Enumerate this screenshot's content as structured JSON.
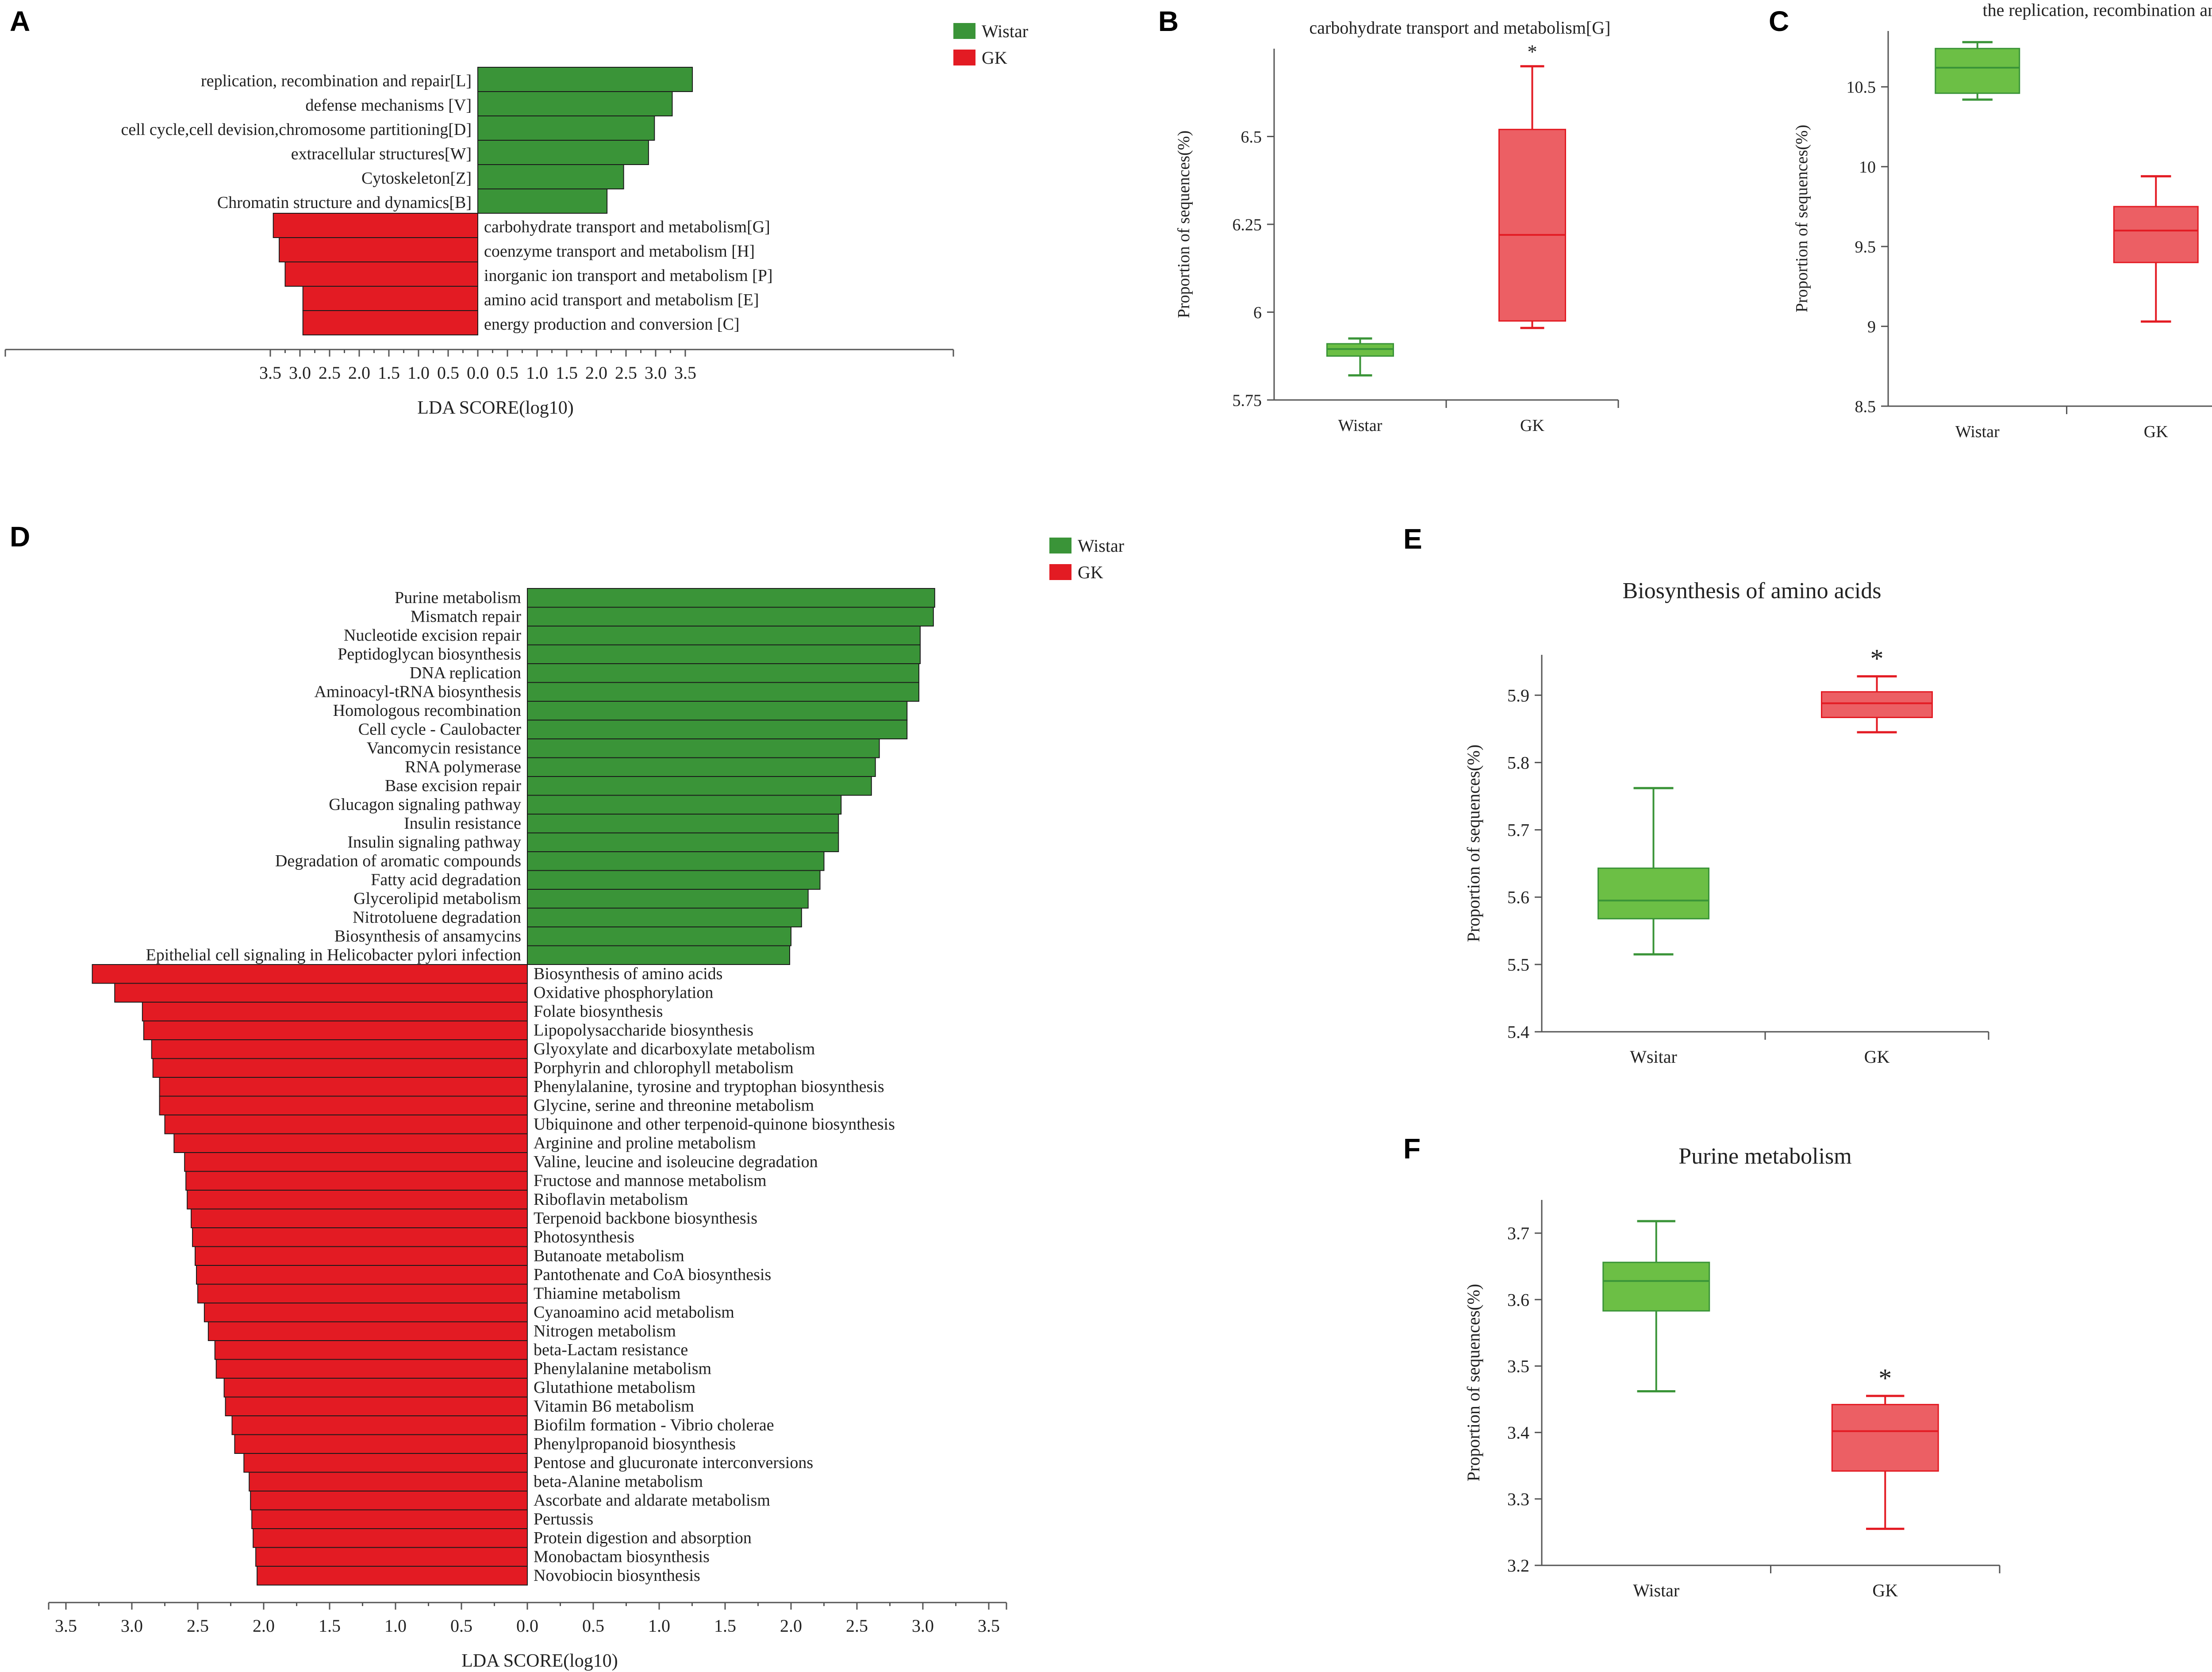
{
  "colors": {
    "wistar": "#3a9438",
    "gk": "#e31b23",
    "wistar_box": "#6cbf45",
    "gk_box": "#ec5f64"
  },
  "chart_data": [
    {
      "panel": "A",
      "type": "bar",
      "orientation": "horizontal",
      "xlabel": "LDA SCORE(log10)",
      "xticks": [
        "3.5",
        "3.0",
        "2.5",
        "2.0",
        "1.5",
        "1.0",
        "0.5",
        "0.0",
        "0.5",
        "1.0",
        "1.5",
        "2.0",
        "2.5",
        "3.0",
        "3.5"
      ],
      "legend": [
        "Wistar",
        "GK"
      ],
      "series": [
        {
          "name": "Wistar",
          "categories": [
            "replication, recombination and repair[L]",
            "defense mechanisms [V]",
            "cell cycle,cell devision,chromosome partitioning[D]",
            "extracellular structures[W]",
            "Cytoskeleton[Z]",
            "Chromatin structure and dynamics[B]"
          ],
          "values": [
            3.62,
            3.28,
            2.98,
            2.88,
            2.46,
            2.18
          ]
        },
        {
          "name": "GK",
          "categories": [
            "carbohydrate transport and metabolism[G]",
            "coenzyme transport and metabolism [H]",
            "inorganic ion transport and metabolism [P]",
            "amino acid transport and metabolism [E]",
            "energy production and conversion [C]"
          ],
          "values": [
            3.45,
            3.35,
            3.25,
            2.95,
            2.95
          ]
        }
      ]
    },
    {
      "panel": "B",
      "type": "box",
      "title": "carbohydrate transport and metabolism[G]",
      "ylabel": "Proportion of sequences(%)",
      "ylim": [
        5.75,
        6.75
      ],
      "yticks": [
        "5.75",
        "6",
        "6.25",
        "6.5"
      ],
      "categories": [
        "Wistar",
        "GK"
      ],
      "boxes": [
        {
          "min": 5.82,
          "q1": 5.875,
          "median": 5.895,
          "q3": 5.91,
          "max": 5.925
        },
        {
          "min": 5.955,
          "q1": 5.975,
          "median": 6.22,
          "q3": 6.52,
          "max": 6.7
        }
      ],
      "annotation": "*"
    },
    {
      "panel": "C",
      "type": "box",
      "title": "the replication, recombination and repair [L]",
      "ylabel": "Proportion of sequences(%)",
      "ylim": [
        8.5,
        10.85
      ],
      "yticks": [
        "8.5",
        "9",
        "9.5",
        "10",
        "10.5"
      ],
      "categories": [
        "Wistar",
        "GK"
      ],
      "boxes": [
        {
          "min": 10.42,
          "q1": 10.46,
          "median": 10.62,
          "q3": 10.74,
          "max": 10.78
        },
        {
          "min": 9.03,
          "q1": 9.4,
          "median": 9.6,
          "q3": 9.75,
          "max": 9.94
        }
      ]
    },
    {
      "panel": "D",
      "type": "bar",
      "orientation": "horizontal",
      "xlabel": "LDA SCORE(log10)",
      "xticks": [
        "3.5",
        "3.0",
        "2.5",
        "2.0",
        "1.5",
        "1.0",
        "0.5",
        "0.0",
        "0.5",
        "1.0",
        "1.5",
        "2.0",
        "2.5",
        "3.0",
        "3.5"
      ],
      "legend": [
        "Wistar",
        "GK"
      ],
      "series": [
        {
          "name": "Wistar",
          "categories": [
            "Purine metabolism",
            "Mismatch repair",
            "Nucleotide excision repair",
            "Peptidoglycan biosynthesis",
            "DNA replication",
            "Aminoacyl-tRNA biosynthesis",
            "Homologous recombination",
            "Cell cycle - Caulobacter",
            "Vancomycin resistance",
            "RNA polymerase",
            "Base excision repair",
            "Glucagon signaling pathway",
            "Insulin resistance",
            "Insulin signaling pathway",
            "Degradation of aromatic compounds",
            "Fatty acid degradation",
            "Glycerolipid metabolism",
            "Nitrotoluene degradation",
            "Biosynthesis of ansamycins",
            "Epithelial cell signaling in Helicobacter pylori infection"
          ],
          "values": [
            3.09,
            3.08,
            2.98,
            2.98,
            2.97,
            2.97,
            2.88,
            2.88,
            2.67,
            2.64,
            2.61,
            2.38,
            2.36,
            2.36,
            2.25,
            2.22,
            2.13,
            2.08,
            2.0,
            1.99
          ]
        },
        {
          "name": "GK",
          "categories": [
            "Biosynthesis of amino acids",
            "Oxidative phosphorylation",
            "Folate biosynthesis",
            "Lipopolysaccharide biosynthesis",
            "Glyoxylate and dicarboxylate metabolism",
            "Porphyrin and chlorophyll metabolism",
            "Phenylalanine, tyrosine and tryptophan biosynthesis",
            "Glycine, serine and threonine metabolism",
            "Ubiquinone and other terpenoid-quinone biosynthesis",
            "Arginine and proline metabolism",
            "Valine, leucine and isoleucine degradation",
            "Fructose and mannose metabolism",
            "Riboflavin metabolism",
            "Terpenoid backbone biosynthesis",
            "Photosynthesis",
            "Butanoate metabolism",
            "Pantothenate and CoA biosynthesis",
            "Thiamine metabolism",
            "Cyanoamino acid metabolism",
            "Nitrogen metabolism",
            "beta-Lactam resistance",
            "Phenylalanine metabolism",
            "Glutathione metabolism",
            "Vitamin B6 metabolism",
            "Biofilm formation - Vibrio cholerae",
            "Phenylpropanoid biosynthesis",
            "Pentose and glucuronate interconversions",
            "beta-Alanine metabolism",
            "Ascorbate and aldarate metabolism",
            "Pertussis",
            "Protein digestion and absorption",
            "Monobactam biosynthesis",
            "Novobiocin biosynthesis"
          ],
          "values": [
            3.3,
            3.13,
            2.92,
            2.91,
            2.85,
            2.84,
            2.79,
            2.79,
            2.75,
            2.68,
            2.6,
            2.59,
            2.58,
            2.55,
            2.54,
            2.52,
            2.51,
            2.5,
            2.45,
            2.42,
            2.37,
            2.36,
            2.3,
            2.29,
            2.24,
            2.22,
            2.15,
            2.11,
            2.1,
            2.09,
            2.08,
            2.06,
            2.05
          ]
        }
      ]
    },
    {
      "panel": "E",
      "type": "box",
      "title": "Biosynthesis of amino acids",
      "ylabel": "Proportion of sequences(%)",
      "ylim": [
        5.4,
        5.96
      ],
      "yticks": [
        "5.4",
        "5.5",
        "5.6",
        "5.7",
        "5.8",
        "5.9"
      ],
      "categories": [
        "Wsitar",
        "GK"
      ],
      "boxes": [
        {
          "min": 5.515,
          "q1": 5.568,
          "median": 5.595,
          "q3": 5.643,
          "max": 5.762
        },
        {
          "min": 5.845,
          "q1": 5.867,
          "median": 5.888,
          "q3": 5.905,
          "max": 5.928
        }
      ],
      "annotation": "*"
    },
    {
      "panel": "F",
      "type": "box",
      "title": "Purine metabolism",
      "ylabel": "Proportion of sequences(%)",
      "ylim": [
        3.2,
        3.75
      ],
      "yticks": [
        "3.2",
        "3.3",
        "3.4",
        "3.5",
        "3.6",
        "3.7"
      ],
      "categories": [
        "Wistar",
        "GK"
      ],
      "boxes": [
        {
          "min": 3.462,
          "q1": 3.583,
          "median": 3.628,
          "q3": 3.656,
          "max": 3.718
        },
        {
          "min": 3.255,
          "q1": 3.342,
          "median": 3.402,
          "q3": 3.442,
          "max": 3.455
        }
      ],
      "annotation": "*"
    }
  ]
}
